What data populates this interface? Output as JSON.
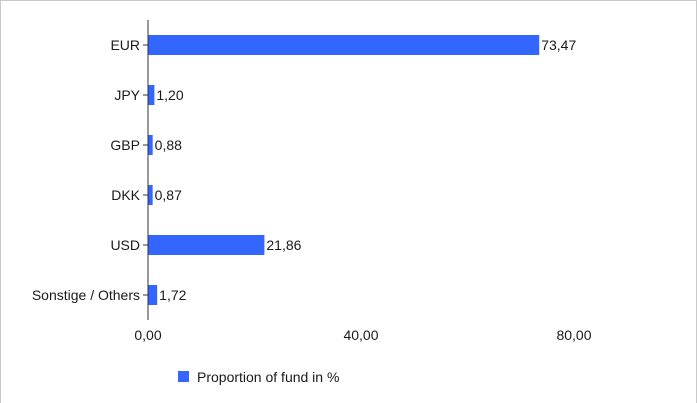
{
  "chart_data": {
    "type": "bar",
    "orientation": "horizontal",
    "categories": [
      "EUR",
      "JPY",
      "GBP",
      "DKK",
      "USD",
      "Sonstige / Others"
    ],
    "series": [
      {
        "name": "Proportion of fund in %",
        "values": [
          73.47,
          1.2,
          0.88,
          0.87,
          21.86,
          1.72
        ],
        "value_labels": [
          "73,47",
          "1,20",
          "0,88",
          "0,87",
          "21,86",
          "1,72"
        ],
        "color": "#3366ff"
      }
    ],
    "xlim": [
      0,
      80
    ],
    "xticks": [
      {
        "value": 0,
        "label": "0,00"
      },
      {
        "value": 40,
        "label": "40,00"
      },
      {
        "value": 80,
        "label": "80,00"
      }
    ],
    "title": "",
    "xlabel": "",
    "ylabel": "",
    "grid": false,
    "legend_position": "bottom"
  }
}
